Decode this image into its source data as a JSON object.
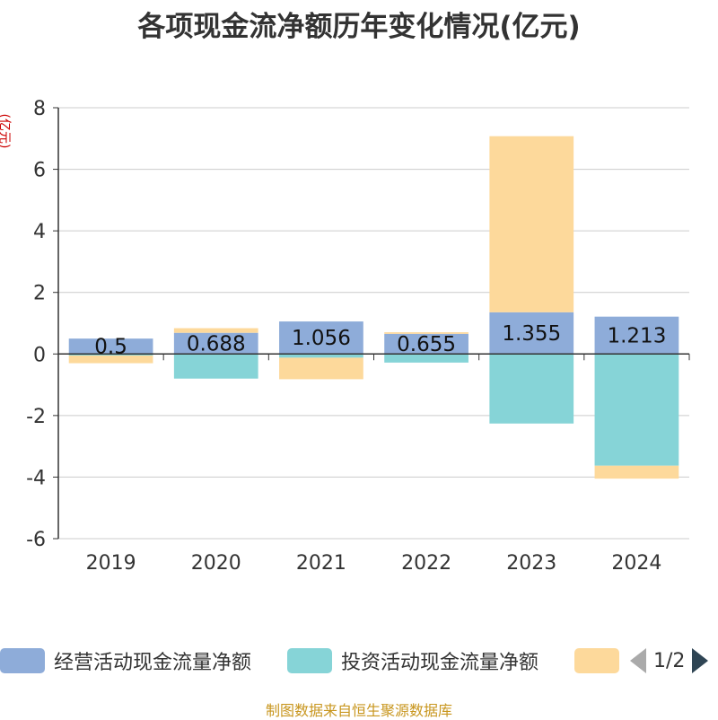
{
  "title": "各项现金流净额历年变化情况(亿元)",
  "y_unit_label": "(亿元)",
  "source": "制图数据来自恒生聚源数据库",
  "legend": {
    "items": [
      {
        "label": "经营活动现金流量净额",
        "color": "#8eacd9"
      },
      {
        "label": "投资活动现金流量净额",
        "color": "#86d4d7"
      },
      {
        "label": "",
        "color": "#fdd99b"
      }
    ],
    "page": "1/2"
  },
  "chart_data": {
    "type": "bar",
    "stacked": true,
    "categories": [
      "2019",
      "2020",
      "2021",
      "2022",
      "2023",
      "2024"
    ],
    "ylim": [
      -6,
      8
    ],
    "yticks": [
      -6,
      -4,
      -2,
      0,
      2,
      4,
      6,
      8
    ],
    "series": [
      {
        "name": "经营活动现金流量净额",
        "color": "#8eacd9",
        "values": [
          0.5,
          0.688,
          1.056,
          0.655,
          1.355,
          1.213
        ],
        "labels": [
          "0.5",
          "0.688",
          "1.056",
          "0.655",
          "1.355",
          "1.213"
        ]
      },
      {
        "name": "投资活动现金流量净额",
        "color": "#86d4d7",
        "values": [
          -0.05,
          -0.8,
          -0.12,
          -0.28,
          -2.26,
          -3.63
        ]
      },
      {
        "name": "",
        "color": "#fdd99b",
        "values": [
          -0.25,
          0.15,
          -0.7,
          0.05,
          5.72,
          -0.42
        ]
      }
    ]
  }
}
